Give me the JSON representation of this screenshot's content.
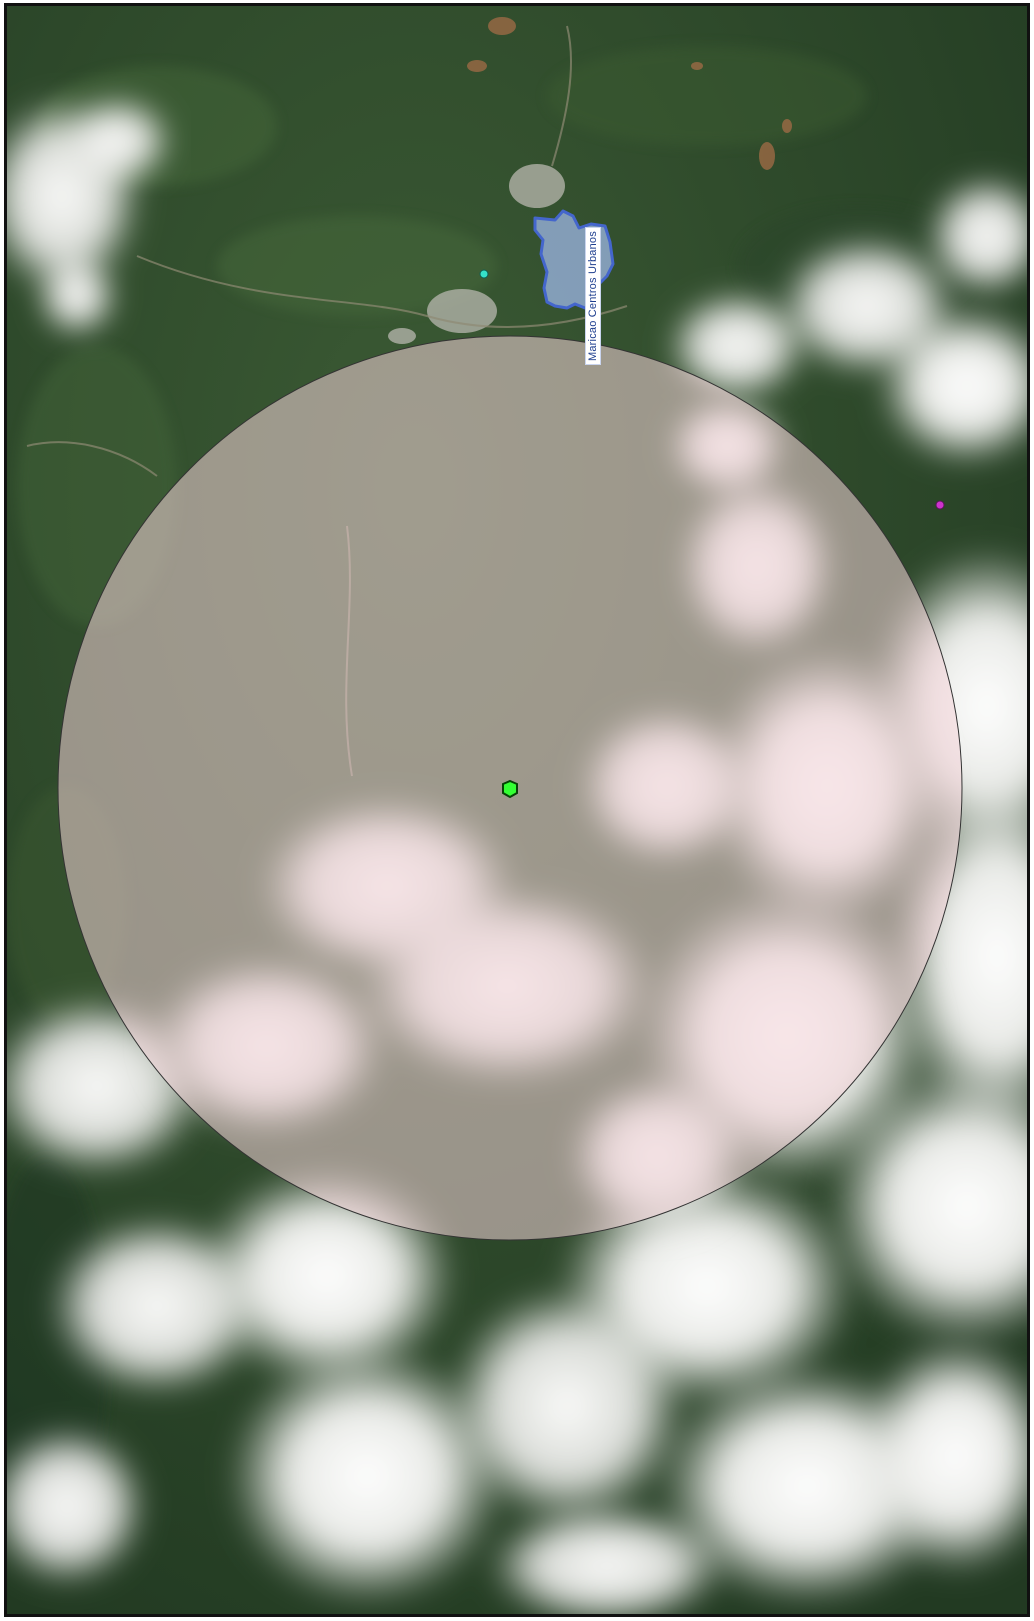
{
  "map": {
    "labels": {
      "urban_center": "Maricao Centros Urbanos"
    },
    "layers": [
      {
        "name": "satellite-imagery",
        "type": "raster"
      },
      {
        "name": "urban-center-polygon",
        "fill": "#9db7e6",
        "stroke": "#4466cc"
      },
      {
        "name": "buffer-circle",
        "fill": "#f4d4d8",
        "stroke": "#333333"
      },
      {
        "name": "site-marker",
        "color": "#33ff33",
        "shape": "hexagon"
      },
      {
        "name": "cyan-point",
        "color": "#35e0c8"
      },
      {
        "name": "purple-point",
        "color": "#cc33cc"
      }
    ],
    "colors": {
      "forest": "#2f4a2a",
      "forest_dark": "#1f3420",
      "cloud": "#f3f3f1",
      "circle_fill": "#f4d4d8",
      "polygon_fill": "#9db7e6",
      "polygon_stroke": "#4466cc",
      "frame": "#111111"
    }
  }
}
